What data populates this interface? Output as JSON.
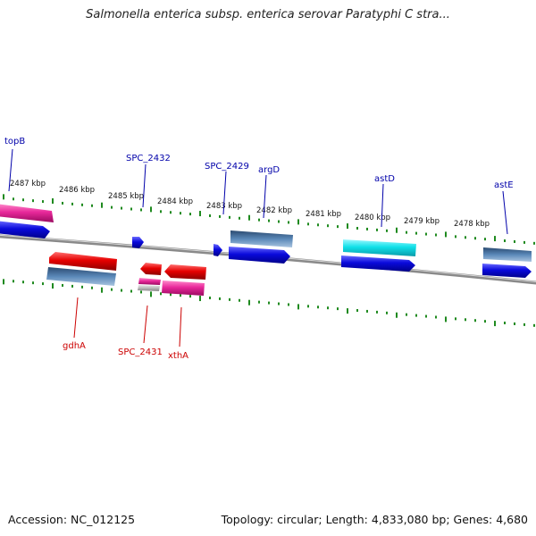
{
  "title": "Salmonella enterica subsp. enterica serovar Paratyphi C stra...",
  "footer": {
    "accession": "Accession: NC_012125",
    "stats": "Topology: circular; Length: 4,833,080 bp; Genes: 4,680"
  },
  "colors": {
    "backbone": "#8a8a8a",
    "ticks": "#1f8a1f",
    "label_top": "#0000aa",
    "label_bottom": "#cc0000",
    "blue": "#0a0adc",
    "red": "#e60000",
    "pink": "#e8289a",
    "steel": "#4a78a8",
    "cyan": "#10e0e8",
    "gray": "#b8b8b8"
  },
  "scale_labels": [
    "2487 kbp",
    "2486 kbp",
    "2485 kbp",
    "2484 kbp",
    "2483 kbp",
    "2482 kbp",
    "2481 kbp",
    "2480 kbp",
    "2479 kbp",
    "2478 kbp"
  ],
  "genes_top": [
    "topB",
    "SPC_2432",
    "SPC_2429",
    "argD",
    "astD",
    "astE"
  ],
  "genes_bottom": [
    "gdhA",
    "SPC_2431",
    "xthA"
  ]
}
